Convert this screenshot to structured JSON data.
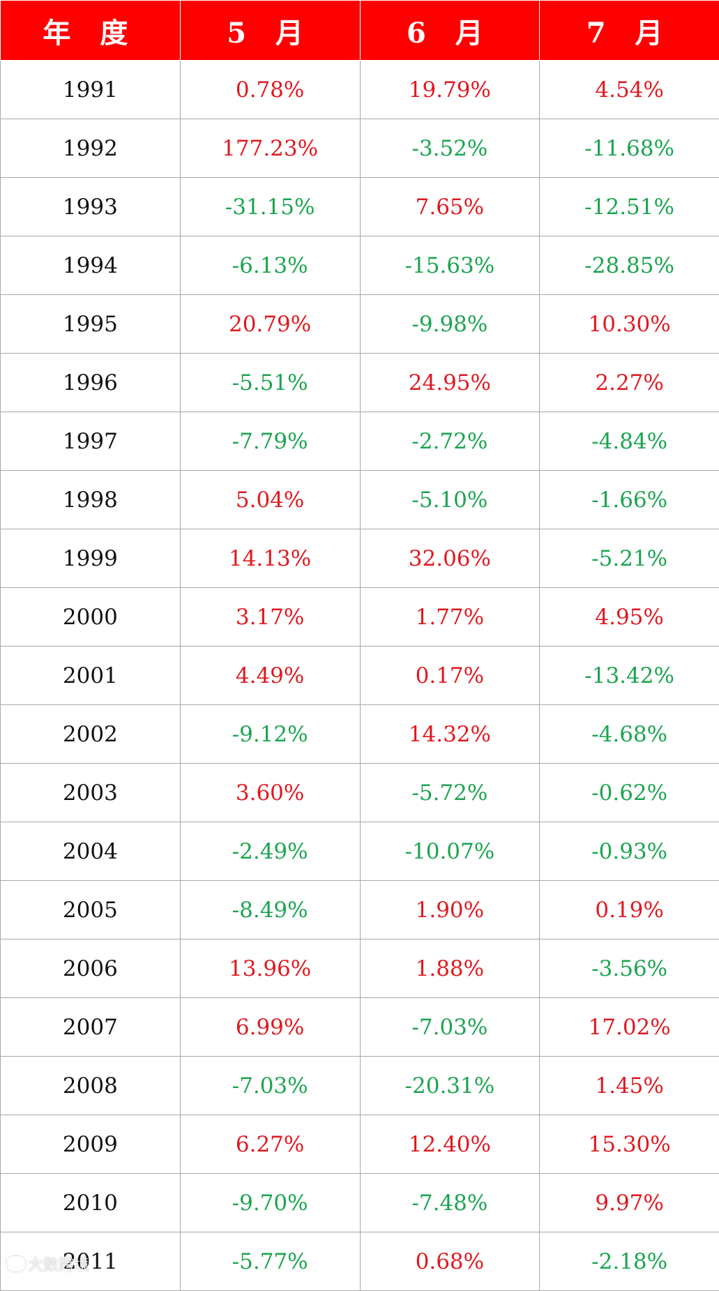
{
  "table": {
    "headers": [
      "年 度",
      "5 月",
      "6 月",
      "7 月"
    ],
    "rows": [
      [
        "1991",
        "0.78%",
        "19.79%",
        "4.54%"
      ],
      [
        "1992",
        "177.23%",
        "-3.52%",
        "-11.68%"
      ],
      [
        "1993",
        "-31.15%",
        "7.65%",
        "-12.51%"
      ],
      [
        "1994",
        "-6.13%",
        "-15.63%",
        "-28.85%"
      ],
      [
        "1995",
        "20.79%",
        "-9.98%",
        "10.30%"
      ],
      [
        "1996",
        "-5.51%",
        "24.95%",
        "2.27%"
      ],
      [
        "1997",
        "-7.79%",
        "-2.72%",
        "-4.84%"
      ],
      [
        "1998",
        "5.04%",
        "-5.10%",
        "-1.66%"
      ],
      [
        "1999",
        "14.13%",
        "32.06%",
        "-5.21%"
      ],
      [
        "2000",
        "3.17%",
        "1.77%",
        "4.95%"
      ],
      [
        "2001",
        "4.49%",
        "0.17%",
        "-13.42%"
      ],
      [
        "2002",
        "-9.12%",
        "14.32%",
        "-4.68%"
      ],
      [
        "2003",
        "3.60%",
        "-5.72%",
        "-0.62%"
      ],
      [
        "2004",
        "-2.49%",
        "-10.07%",
        "-0.93%"
      ],
      [
        "2005",
        "-8.49%",
        "1.90%",
        "0.19%"
      ],
      [
        "2006",
        "13.96%",
        "1.88%",
        "-3.56%"
      ],
      [
        "2007",
        "6.99%",
        "-7.03%",
        "17.02%"
      ],
      [
        "2008",
        "-7.03%",
        "-20.31%",
        "1.45%"
      ],
      [
        "2009",
        "6.27%",
        "12.40%",
        "15.30%"
      ],
      [
        "2010",
        "-9.70%",
        "-7.48%",
        "9.97%"
      ],
      [
        "2011",
        "-5.77%",
        "0.68%",
        "-2.18%"
      ]
    ]
  },
  "colors": {
    "header_bg": "#ff0000",
    "header_text": "#ffffff",
    "positive": "#e0181f",
    "negative": "#1aa44f",
    "year_text": "#111111",
    "grid": "#a8a8a8"
  },
  "watermark": {
    "text": "大数跨境",
    "icon": "chat-bubble-icon"
  }
}
